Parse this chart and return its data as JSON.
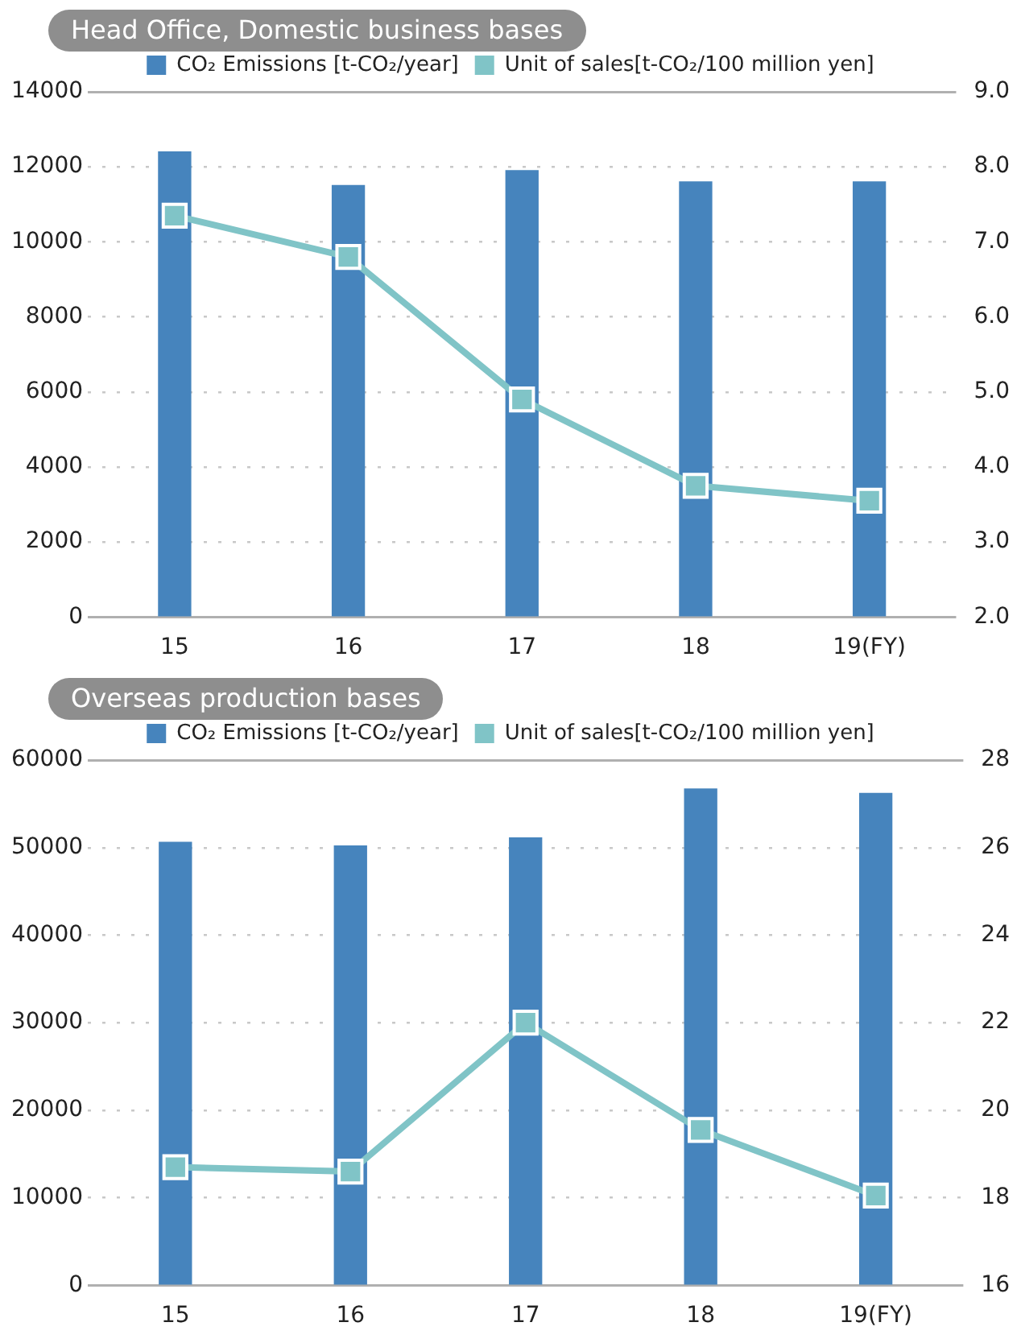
{
  "chart_data": [
    {
      "type": "bar",
      "title": "Head Office, Domestic business bases",
      "categories": [
        "15",
        "16",
        "17",
        "18",
        "19(FY)"
      ],
      "series": [
        {
          "name": "CO₂ Emissions [t-CO₂/year]",
          "color": "#4684bd",
          "values": [
            12400,
            11500,
            11900,
            11600,
            11600
          ]
        },
        {
          "name": "Unit of sales[t-CO₂/100 million yen]",
          "type": "line",
          "axis": "y2",
          "color": "#80c4c7",
          "values": [
            7.35,
            6.8,
            4.9,
            3.75,
            3.55
          ]
        }
      ],
      "ylim": [
        0,
        14000
      ],
      "yticks": [
        0,
        2000,
        4000,
        6000,
        8000,
        10000,
        12000,
        14000
      ],
      "y2lim": [
        2,
        9
      ],
      "y2ticks": [
        {
          "value": 2,
          "label": "2.0"
        },
        {
          "value": 3,
          "label": "3.0"
        },
        {
          "value": 4,
          "label": "4.0"
        },
        {
          "value": 5,
          "label": "5.0"
        },
        {
          "value": 6,
          "label": "6.0"
        },
        {
          "value": 7,
          "label": "7.0"
        },
        {
          "value": 8,
          "label": "8.0"
        },
        {
          "value": 9,
          "label": "9.0"
        }
      ],
      "grid": "y",
      "legend": "top",
      "marker": "square"
    },
    {
      "type": "bar",
      "title": "Overseas production bases",
      "categories": [
        "15",
        "16",
        "17",
        "18",
        "19(FY)"
      ],
      "series": [
        {
          "name": "CO₂ Emissions [t-CO₂/year]",
          "color": "#4684bd",
          "values": [
            50600,
            50200,
            51100,
            56700,
            56200
          ]
        },
        {
          "name": "Unit of sales[t-CO₂/100 million yen]",
          "type": "line",
          "axis": "y2",
          "color": "#80c4c7",
          "values": [
            18.7,
            18.6,
            22.0,
            19.55,
            18.05
          ]
        }
      ],
      "ylim": [
        0,
        60000
      ],
      "yticks": [
        0,
        10000,
        20000,
        30000,
        40000,
        50000,
        60000
      ],
      "y2lim": [
        16,
        28
      ],
      "y2ticks": [
        16,
        18,
        20,
        22,
        24,
        26,
        28
      ],
      "grid": "y",
      "legend": "top",
      "marker": "square"
    }
  ]
}
